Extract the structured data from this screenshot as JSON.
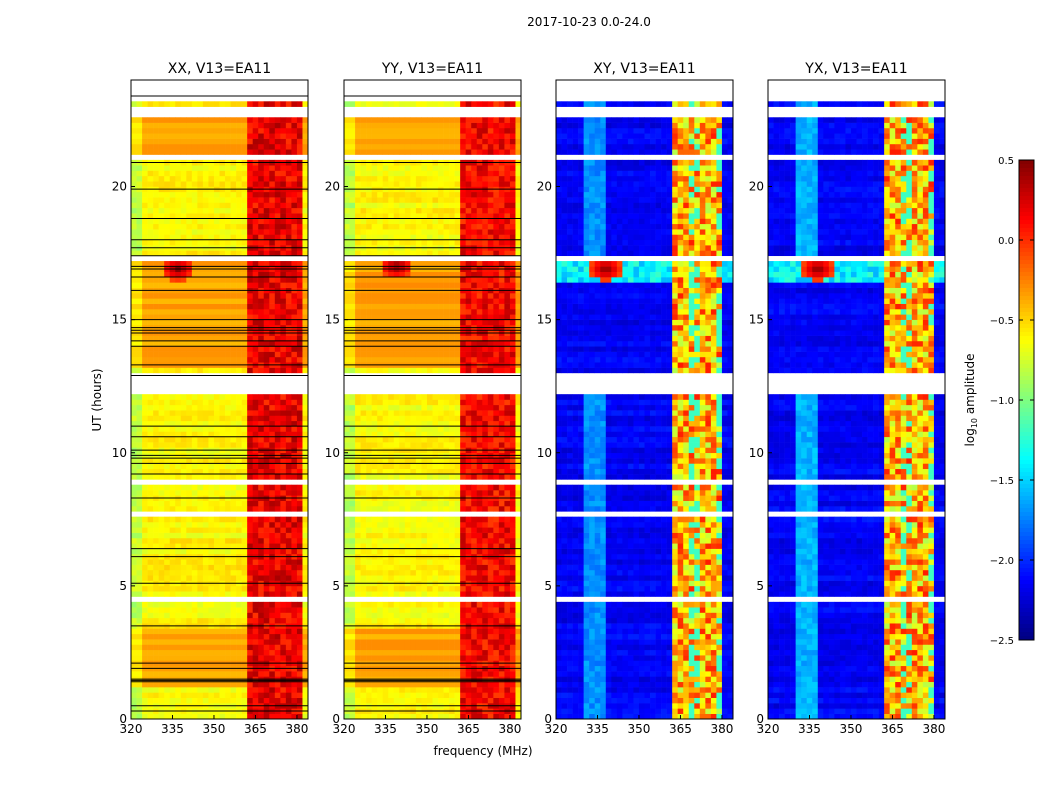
{
  "chart_data": {
    "type": "heatmap",
    "suptitle": "2017-10-23 0.0-24.0",
    "xlabel": "frequency (MHz)",
    "ylabel": "UT (hours)",
    "xlim": [
      320,
      384
    ],
    "ylim": [
      0,
      24
    ],
    "xticks": [
      320,
      335,
      350,
      365,
      380
    ],
    "yticks": [
      0,
      5,
      10,
      15,
      20
    ],
    "colorbar": {
      "label": "log10 amplitude",
      "label_main": "log",
      "label_sub": "10",
      "label_rest": " amplitude",
      "range": [
        -2.5,
        0.5
      ],
      "ticks": [
        "0.5",
        "0.0",
        "−0.5",
        "−1.0",
        "−1.5",
        "−2.0",
        "−2.5"
      ],
      "tick_values": [
        0.5,
        0,
        -0.5,
        -1,
        -1.5,
        -2,
        -2.5
      ],
      "colormap": "jet"
    },
    "panels": [
      {
        "title": "XX, V13=EA11",
        "kind": "parallel",
        "base": -0.6,
        "rfi_band": [
          363,
          382
        ],
        "rfi_level": 0.1,
        "warm_times": [
          [
            1.2,
            3.4
          ],
          [
            13.0,
            17.2
          ],
          [
            20.9,
            22.8
          ]
        ],
        "warm_level": -0.35,
        "burst": {
          "freq": 337,
          "time": 16.8
        }
      },
      {
        "title": "YY, V13=EA11",
        "kind": "parallel",
        "base": -0.62,
        "rfi_band": [
          362,
          382
        ],
        "rfi_level": 0.05,
        "warm_times": [
          [
            1.2,
            3.4
          ],
          [
            13.0,
            17.2
          ],
          [
            20.9,
            22.8
          ]
        ],
        "warm_level": -0.35,
        "burst": {
          "freq": 339,
          "time": 16.9
        }
      },
      {
        "title": "XY, V13=EA11",
        "kind": "cross",
        "base": -2.15,
        "rfi_band": [
          363,
          380
        ],
        "rfi_level": -0.4,
        "glow_band": [
          330,
          338
        ],
        "glow_level": -1.7,
        "burst": {
          "freq": 338,
          "time": 16.8
        }
      },
      {
        "title": "YX, V13=EA11",
        "kind": "cross",
        "base": -2.15,
        "rfi_band": [
          363,
          380
        ],
        "rfi_level": -0.4,
        "glow_band": [
          330,
          338
        ],
        "glow_level": -1.6,
        "burst": {
          "freq": 338,
          "time": 16.8
        }
      }
    ],
    "flagged_gaps_hours": [
      [
        0.95,
        1.1
      ],
      [
        1.45,
        1.5
      ],
      [
        4.5,
        4.6
      ],
      [
        7.7,
        7.8
      ],
      [
        8.9,
        9.0
      ],
      [
        11.7,
        11.8
      ],
      [
        12.2,
        12.9
      ],
      [
        15.3,
        15.45
      ],
      [
        17.2,
        17.3
      ],
      [
        18.7,
        18.8
      ],
      [
        21.0,
        21.1
      ],
      [
        22.65,
        22.9
      ],
      [
        23.2,
        24.0
      ]
    ],
    "black_lines_hours": [
      0.3,
      0.5,
      1.4,
      1.45,
      1.5,
      1.9,
      2.1,
      3.5,
      5.1,
      6.1,
      6.4,
      8.3,
      9.2,
      9.6,
      9.8,
      9.9,
      10.1,
      10.6,
      11.0,
      12.9,
      13.3,
      14.0,
      14.2,
      14.5,
      14.6,
      14.7,
      15.0,
      16.1,
      16.6,
      16.9,
      17.0,
      17.4,
      17.7,
      18.0,
      18.8,
      19.9,
      20.9,
      23.4
    ]
  }
}
